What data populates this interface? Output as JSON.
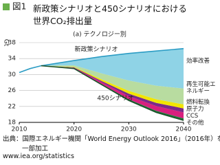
{
  "chart_data": {
    "type": "area",
    "figure_label": "図1",
    "title": [
      "新政策シナリオと450シナリオにおける",
      "世界CO₂排出量"
    ],
    "subtitle": "(a) テクノロジー別",
    "y_label": "Gt",
    "x": [
      2010,
      2012,
      2014,
      2020,
      2025,
      2030,
      2035,
      2040
    ],
    "xlim": [
      2010,
      2040
    ],
    "ylim": [
      18,
      38
    ],
    "xticks": [
      2010,
      2020,
      2030,
      2040
    ],
    "yticks": [
      18,
      22,
      26,
      30,
      34,
      38
    ],
    "grid": true,
    "lines": [
      {
        "name": "新政策シナリオ",
        "color": "#2b9cc4",
        "values": [
          30.5,
          31.5,
          32.2,
          33.5,
          34.5,
          35.3,
          35.9,
          36.5
        ]
      },
      {
        "name": "450シナリオ",
        "color": "#1b4f2a",
        "values": [
          null,
          null,
          32.2,
          31.5,
          27.5,
          23.5,
          20.5,
          18.5
        ]
      }
    ],
    "series": [
      {
        "name": "その他",
        "color": "#1f7a3a",
        "values": [
          null,
          null,
          0,
          0.1,
          0.2,
          0.3,
          0.4,
          0.5
        ]
      },
      {
        "name": "CCS",
        "color": "#d8207e",
        "values": [
          null,
          null,
          0,
          0.1,
          0.4,
          0.8,
          1.2,
          1.5
        ]
      },
      {
        "name": "原子力",
        "color": "#7a2a8a",
        "values": [
          null,
          null,
          0,
          0.1,
          0.3,
          0.6,
          0.8,
          1.0
        ]
      },
      {
        "name": "燃料転換",
        "color": "#f2e500",
        "values": [
          null,
          null,
          0,
          0.1,
          0.4,
          0.7,
          0.9,
          1.0
        ]
      },
      {
        "name": "再生可能エネルギー",
        "color": "#b8dca0",
        "values": [
          null,
          null,
          0,
          0.4,
          1.5,
          2.6,
          3.4,
          4.0
        ]
      },
      {
        "name": "効率改善",
        "color": "#8fd3e6",
        "values": [
          null,
          null,
          0,
          1.2,
          4.2,
          6.8,
          8.7,
          10.0
        ]
      }
    ],
    "source": [
      "出典：国際エネルギー機関「World Energy Outlook 2016」（2016年）を",
      "一部加工",
      "www.iea.org/statistics"
    ]
  }
}
